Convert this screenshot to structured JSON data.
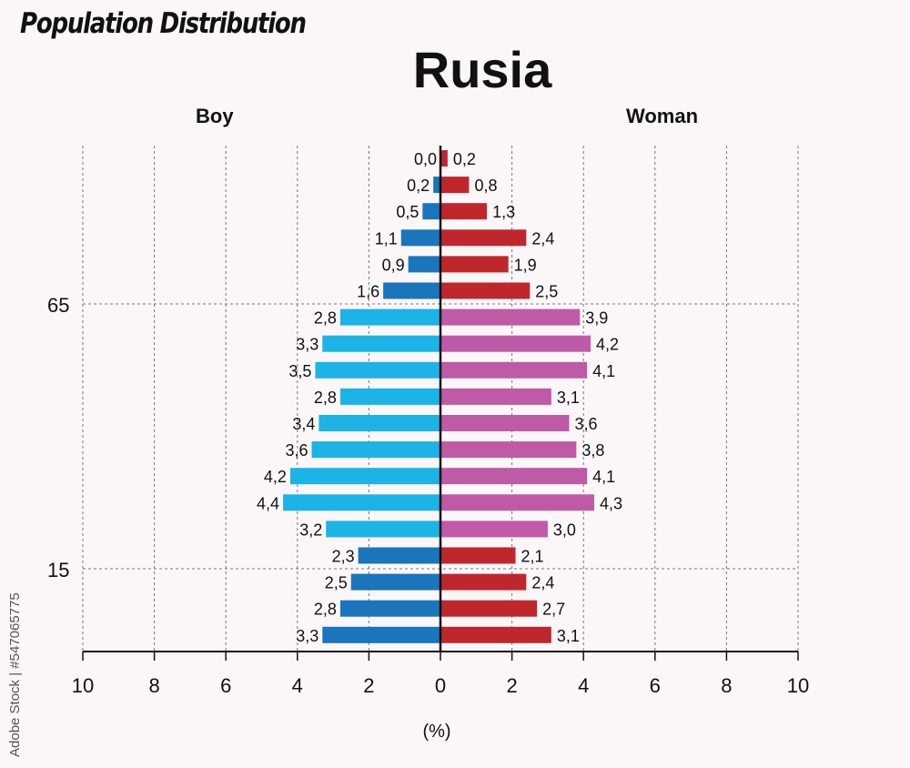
{
  "header": {
    "heading": "Population Distribution",
    "title": "Rusia",
    "left_label": "Boy",
    "right_label": "Woman"
  },
  "credit": "Adobe Stock | #547065775",
  "chart_data": {
    "type": "bar",
    "orientation": "horizontal",
    "layout": "population-pyramid",
    "xlabel": "(%)",
    "xticks": [
      "10",
      "8",
      "6",
      "4",
      "2",
      "0",
      "2",
      "4",
      "6",
      "8",
      "10"
    ],
    "xlim": [
      -10,
      10
    ],
    "yticks": [
      {
        "label": "65",
        "after_row": 5
      },
      {
        "label": "15",
        "after_row": 15
      }
    ],
    "grid": true,
    "series": [
      {
        "name": "Boy",
        "side": "left",
        "values": [
          0.0,
          0.2,
          0.5,
          1.1,
          0.9,
          1.6,
          2.8,
          3.3,
          3.5,
          2.8,
          3.4,
          3.6,
          4.2,
          4.4,
          3.2,
          2.3,
          2.5,
          2.8,
          3.3
        ],
        "labels": [
          "0,0",
          "0,2",
          "0,5",
          "1,1",
          "0,9",
          "1,6",
          "2,8",
          "3,3",
          "3,5",
          "2,8",
          "3,4",
          "3,6",
          "4,2",
          "4,4",
          "3,2",
          "2,3",
          "2,5",
          "2,8",
          "3,3"
        ]
      },
      {
        "name": "Woman",
        "side": "right",
        "values": [
          0.2,
          0.8,
          1.3,
          2.4,
          1.9,
          2.5,
          3.9,
          4.2,
          4.1,
          3.1,
          3.6,
          3.8,
          4.1,
          4.3,
          3.0,
          2.1,
          2.4,
          2.7,
          3.1
        ],
        "labels": [
          "0,2",
          "0,8",
          "1,3",
          "2,4",
          "1,9",
          "2,5",
          "3,9",
          "4,2",
          "4,1",
          "3,1",
          "3,6",
          "3,8",
          "4,1",
          "4,3",
          "3,0",
          "2,1",
          "2,4",
          "2,7",
          "3,1"
        ]
      }
    ],
    "colors": {
      "boy_senior": "#1a75bc",
      "boy_working": "#1cb3e6",
      "boy_young": "#1a75bc",
      "woman_senior": "#c0272d",
      "woman_working": "#bf5aa7",
      "woman_young": "#c0272d",
      "axis": "#111111",
      "grid": "#777777"
    }
  }
}
